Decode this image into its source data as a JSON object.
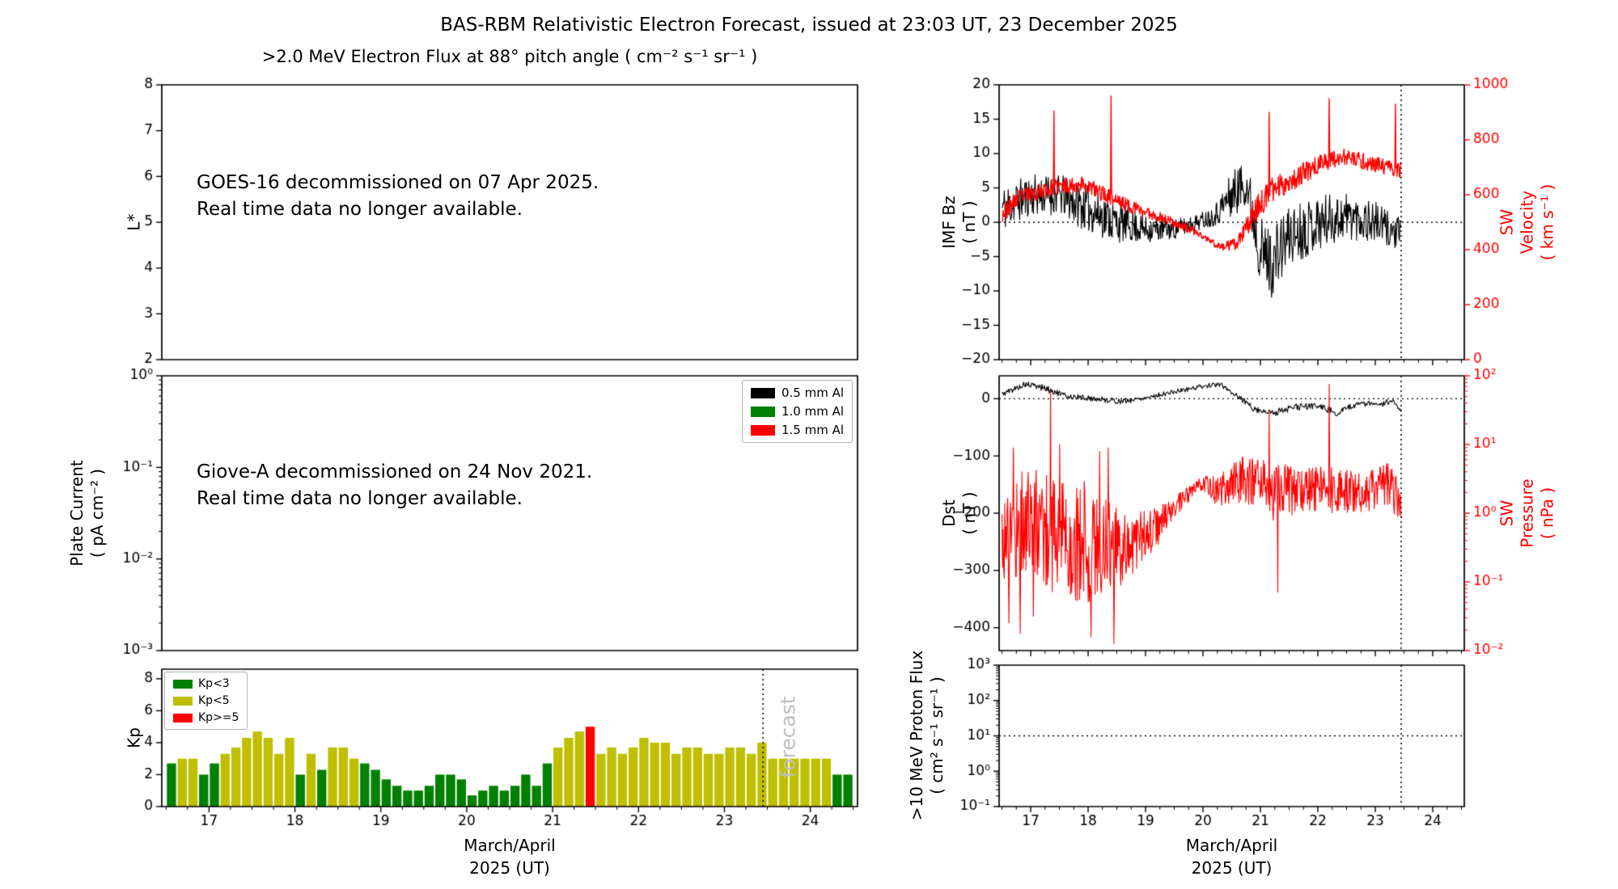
{
  "figure": {
    "title": "BAS-RBM Relativistic Electron Forecast, issued at 23:03 UT, 23 December 2025",
    "background": "#ffffff"
  },
  "colors": {
    "axis": "#000000",
    "green": "#008000",
    "olive": "#bfbf00",
    "red": "#ff0000",
    "forecast_gray": "#bfbfbf"
  },
  "chart_data": [
    {
      "id": "electron_flux",
      "type": "empty",
      "title": ">2.0 MeV Electron Flux at 88° pitch angle ( cm⁻² s⁻¹ sr⁻¹ )",
      "ylabel": "L*",
      "ylim": [
        2,
        8
      ],
      "yticks": [
        [
          2,
          "2"
        ],
        [
          3,
          "3"
        ],
        [
          4,
          "4"
        ],
        [
          5,
          "5"
        ],
        [
          6,
          "6"
        ],
        [
          7,
          "7"
        ],
        [
          8,
          "8"
        ]
      ],
      "notice": "GOES-16 decommissioned on 07 Apr 2025.\nReal time data no longer available."
    },
    {
      "id": "plate_current",
      "type": "empty",
      "ylabel": "Plate Current\n( pA cm⁻² )",
      "ylog": true,
      "ylim": [
        -3,
        0
      ],
      "yticks": [
        [
          -3,
          "10⁻³"
        ],
        [
          -2,
          "10⁻²"
        ],
        [
          -1,
          "10⁻¹"
        ],
        [
          0,
          "10⁰"
        ]
      ],
      "legend": [
        {
          "label": "0.5 mm Al",
          "color": "#000000"
        },
        {
          "label": "1.0 mm Al",
          "color": "#008000"
        },
        {
          "label": "1.5 mm Al",
          "color": "#ff0000"
        }
      ],
      "notice": "Giove-A decommissioned on 24 Nov 2021.\nReal time data no longer available."
    },
    {
      "id": "kp",
      "type": "bar",
      "ylabel": "Kp",
      "xlabel": "March/April\n2025 (UT)",
      "ylim": [
        0,
        8.6
      ],
      "yticks": [
        [
          0,
          "0"
        ],
        [
          2,
          "2"
        ],
        [
          4,
          "4"
        ],
        [
          6,
          "6"
        ],
        [
          8,
          "8"
        ]
      ],
      "xlim": [
        16.45,
        24.55
      ],
      "xticks": [
        [
          17,
          "17"
        ],
        [
          18,
          "18"
        ],
        [
          19,
          "19"
        ],
        [
          20,
          "20"
        ],
        [
          21,
          "21"
        ],
        [
          22,
          "22"
        ],
        [
          23,
          "23"
        ],
        [
          24,
          "24"
        ]
      ],
      "xtick_labels": true,
      "xminor": true,
      "bar_start": 16.5,
      "bar_width": 0.125,
      "values": [
        2.7,
        3,
        3,
        2,
        2.7,
        3.3,
        3.7,
        4.3,
        4.7,
        4.3,
        3.3,
        4.3,
        2,
        3.3,
        2.3,
        3.7,
        3.7,
        3,
        2.7,
        2.3,
        1.7,
        1.3,
        1,
        1,
        1.3,
        2,
        2,
        1.7,
        0.7,
        1,
        1.3,
        1,
        1.3,
        2,
        1.3,
        2.7,
        3.7,
        4.3,
        4.7,
        5,
        3.3,
        3.7,
        3.3,
        3.7,
        4.3,
        4,
        4,
        3.3,
        3.7,
        3.7,
        3.3,
        3.3,
        3.7,
        3.7,
        3.3,
        4,
        3,
        3,
        3,
        3,
        3,
        3,
        2,
        2
      ],
      "thresholds": [
        3,
        5
      ],
      "bar_colors": {
        "low": "#008000",
        "mid": "#bfbf00",
        "high": "#ff0000"
      },
      "legend": [
        {
          "label": "Kp<3",
          "color": "#008000"
        },
        {
          "label": "Kp<5",
          "color": "#bfbf00"
        },
        {
          "label": "Kp>=5",
          "color": "#ff0000"
        }
      ],
      "forecast_line_x": 23.45,
      "forecast_label": "forecast",
      "forecast_color": "#bfbfbf"
    },
    {
      "id": "imf_sw",
      "type": "lines",
      "xlim": [
        16.45,
        24.55
      ],
      "xticks": [
        [
          17,
          "17"
        ],
        [
          18,
          "18"
        ],
        [
          19,
          "19"
        ],
        [
          20,
          "20"
        ],
        [
          21,
          "21"
        ],
        [
          22,
          "22"
        ],
        [
          23,
          "23"
        ],
        [
          24,
          "24"
        ]
      ],
      "xtick_labels": false,
      "xminor": true,
      "left": {
        "label": "IMF Bz\n( nT )",
        "lim": [
          -20,
          20
        ],
        "ticks": [
          [
            20,
            "20"
          ],
          [
            15,
            "15"
          ],
          [
            10,
            "10"
          ],
          [
            5,
            "5"
          ],
          [
            0,
            "0"
          ],
          [
            -5,
            "−5"
          ],
          [
            -10,
            "−10"
          ],
          [
            -15,
            "−15"
          ],
          [
            -20,
            "−20"
          ]
        ],
        "color": "#000000"
      },
      "right": {
        "label": "SW Velocity\n( km s⁻¹ )",
        "lim": [
          0,
          1000
        ],
        "ticks": [
          [
            1000,
            "1000"
          ],
          [
            800,
            "800"
          ],
          [
            600,
            "600"
          ],
          [
            400,
            "400"
          ],
          [
            200,
            "200"
          ],
          [
            0,
            "0"
          ]
        ],
        "color": "#ff0000"
      },
      "hline": 0,
      "forecast_line_x": 23.45,
      "series": [
        {
          "name": "IMF Bz",
          "axis": "left",
          "color": "#000000",
          "width": 1.1,
          "seed": 11,
          "n": 700,
          "x_start": 16.5,
          "x_end": 23.45,
          "keypoints": [
            [
              16.5,
              2,
              3.5
            ],
            [
              17,
              4,
              3
            ],
            [
              17.5,
              4,
              3
            ],
            [
              18,
              2,
              3.5
            ],
            [
              18.5,
              0,
              3
            ],
            [
              19,
              -1,
              2
            ],
            [
              19.5,
              -1,
              1.5
            ],
            [
              19.9,
              0,
              1.2
            ],
            [
              20.2,
              1,
              1.5
            ],
            [
              20.5,
              4,
              3.5
            ],
            [
              20.75,
              6,
              3.5
            ],
            [
              21,
              -4,
              5
            ],
            [
              21.2,
              -6,
              5
            ],
            [
              21.5,
              -2,
              4.5
            ],
            [
              22,
              0,
              4
            ],
            [
              22.5,
              1,
              3.5
            ],
            [
              23,
              0,
              3
            ],
            [
              23.45,
              -2,
              2.5
            ]
          ]
        },
        {
          "name": "SW Velocity",
          "axis": "right",
          "color": "#ff0000",
          "width": 1.4,
          "seed": 23,
          "n": 700,
          "x_start": 16.5,
          "x_end": 23.45,
          "keypoints": [
            [
              16.5,
              530,
              35
            ],
            [
              16.8,
              590,
              30
            ],
            [
              17.1,
              610,
              30
            ],
            [
              17.5,
              630,
              30
            ],
            [
              17.9,
              640,
              30
            ],
            [
              18.3,
              600,
              30
            ],
            [
              18.7,
              560,
              25
            ],
            [
              19.1,
              530,
              20
            ],
            [
              19.5,
              500,
              18
            ],
            [
              19.9,
              460,
              15
            ],
            [
              20.3,
              410,
              12
            ],
            [
              20.6,
              420,
              25
            ],
            [
              20.9,
              540,
              45
            ],
            [
              21.2,
              620,
              45
            ],
            [
              21.6,
              660,
              40
            ],
            [
              22,
              710,
              35
            ],
            [
              22.4,
              740,
              30
            ],
            [
              22.8,
              720,
              30
            ],
            [
              23.2,
              700,
              28
            ],
            [
              23.45,
              690,
              28
            ]
          ],
          "spikes": [
            [
              17.4,
              905
            ],
            [
              18.4,
              960
            ],
            [
              21.15,
              900
            ],
            [
              22.2,
              950
            ],
            [
              23.35,
              930
            ]
          ]
        }
      ]
    },
    {
      "id": "dst_pressure",
      "type": "lines",
      "xlim": [
        16.45,
        24.55
      ],
      "xticks": [
        [
          17,
          "17"
        ],
        [
          18,
          "18"
        ],
        [
          19,
          "19"
        ],
        [
          20,
          "20"
        ],
        [
          21,
          "21"
        ],
        [
          22,
          "22"
        ],
        [
          23,
          "23"
        ],
        [
          24,
          "24"
        ]
      ],
      "xtick_labels": false,
      "xminor": true,
      "left": {
        "label": "Dst\n( nT )",
        "lim": [
          -440,
          40
        ],
        "ticks": [
          [
            0,
            "0"
          ],
          [
            -100,
            "−100"
          ],
          [
            -200,
            "−200"
          ],
          [
            -300,
            "−300"
          ],
          [
            -400,
            "−400"
          ]
        ],
        "color": "#000000"
      },
      "right": {
        "label": "SW Pressure\n( nPa )",
        "log": true,
        "lim": [
          -2,
          2
        ],
        "ticks": [
          [
            2,
            "10²"
          ],
          [
            1,
            "10¹"
          ],
          [
            0,
            "10⁰"
          ],
          [
            -1,
            "10⁻¹"
          ],
          [
            -2,
            "10⁻²"
          ]
        ],
        "color": "#ff0000"
      },
      "hline": 0,
      "forecast_line_x": 23.45,
      "series": [
        {
          "name": "Dst",
          "axis": "left",
          "color": "#000000",
          "width": 1.1,
          "seed": 5,
          "n": 500,
          "x_start": 16.5,
          "x_end": 23.45,
          "keypoints": [
            [
              16.5,
              8,
              5
            ],
            [
              16.9,
              25,
              5
            ],
            [
              17.2,
              20,
              6
            ],
            [
              17.6,
              5,
              5
            ],
            [
              18.1,
              0,
              5
            ],
            [
              18.6,
              -5,
              5
            ],
            [
              19,
              2,
              4
            ],
            [
              19.5,
              12,
              4
            ],
            [
              20,
              22,
              4
            ],
            [
              20.3,
              25,
              4
            ],
            [
              20.6,
              5,
              6
            ],
            [
              20.9,
              -18,
              6
            ],
            [
              21.2,
              -25,
              6
            ],
            [
              21.6,
              -15,
              6
            ],
            [
              22,
              -12,
              6
            ],
            [
              22.35,
              -25,
              6
            ],
            [
              22.7,
              -8,
              5
            ],
            [
              23.1,
              -10,
              5
            ],
            [
              23.3,
              -3,
              5
            ],
            [
              23.45,
              -25,
              5
            ]
          ]
        },
        {
          "name": "SW Pressure",
          "axis": "right",
          "color": "#ff0000",
          "width": 1.1,
          "seed": 17,
          "n": 700,
          "log": true,
          "x_start": 16.5,
          "x_end": 23.45,
          "keypoints": [
            [
              16.5,
              -0.3,
              0.8
            ],
            [
              17,
              -0.1,
              0.85
            ],
            [
              17.4,
              -0.3,
              0.9
            ],
            [
              18,
              -0.45,
              0.9
            ],
            [
              18.6,
              -0.5,
              0.55
            ],
            [
              19.2,
              -0.2,
              0.3
            ],
            [
              19.6,
              0.15,
              0.15
            ],
            [
              20,
              0.45,
              0.1
            ],
            [
              20.3,
              0.3,
              0.3
            ],
            [
              20.7,
              0.5,
              0.35
            ],
            [
              21.2,
              0.3,
              0.45
            ],
            [
              21.8,
              0.35,
              0.3
            ],
            [
              22.3,
              0.35,
              0.35
            ],
            [
              22.8,
              0.3,
              0.3
            ],
            [
              23.2,
              0.4,
              0.35
            ],
            [
              23.45,
              0.2,
              0.3
            ]
          ],
          "spikes": [
            [
              16.62,
              -1.6
            ],
            [
              16.7,
              0.95
            ],
            [
              16.82,
              -1.75
            ],
            [
              17.05,
              -1.5
            ],
            [
              17.35,
              1.78
            ],
            [
              17.5,
              1.0
            ],
            [
              18.05,
              -1.8
            ],
            [
              18.2,
              0.9
            ],
            [
              18.35,
              0.95
            ],
            [
              18.45,
              -1.9
            ],
            [
              21.15,
              1.5
            ],
            [
              21.3,
              -1.15
            ],
            [
              22.2,
              1.88
            ]
          ]
        }
      ]
    },
    {
      "id": "proton_flux",
      "type": "empty",
      "ylabel": ">10 MeV Proton Flux\n( cm² s⁻¹ sr⁻¹ )",
      "ylog": true,
      "ylim": [
        -1,
        3
      ],
      "yticks": [
        [
          3,
          "10³"
        ],
        [
          2,
          "10²"
        ],
        [
          1,
          "10¹"
        ],
        [
          0,
          "10⁰"
        ],
        [
          -1,
          "10⁻¹"
        ]
      ],
      "xlim": [
        16.45,
        24.55
      ],
      "xticks": [
        [
          17,
          "17"
        ],
        [
          18,
          "18"
        ],
        [
          19,
          "19"
        ],
        [
          20,
          "20"
        ],
        [
          21,
          "21"
        ],
        [
          22,
          "22"
        ],
        [
          23,
          "23"
        ],
        [
          24,
          "24"
        ]
      ],
      "xtick_labels": true,
      "xminor": true,
      "xlabel": "March/April\n2025 (UT)",
      "hline": 1,
      "forecast_line_x": 23.45
    }
  ]
}
